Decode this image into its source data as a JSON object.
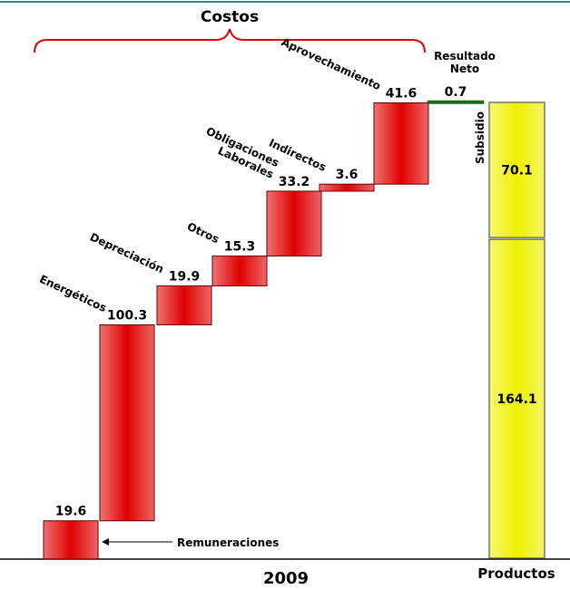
{
  "chart_data": {
    "type": "waterfall",
    "group_label": "Costos",
    "x_label": "2009",
    "categories": [
      "Remuneraciones",
      "Energéticos",
      "Depreciación",
      "Otros",
      "Obligaciones Laborales",
      "Indirectos",
      "Aprovechamiento",
      "Resultado Neto"
    ],
    "values": [
      19.6,
      100.3,
      19.9,
      15.3,
      33.2,
      3.6,
      41.6,
      0.7
    ],
    "colors": [
      "#e00000",
      "#e00000",
      "#e00000",
      "#e00000",
      "#e00000",
      "#e00000",
      "#e00000",
      "#1a6a1a"
    ],
    "stack_label": "Productos",
    "stack_categories": [
      null,
      "Subsidio"
    ],
    "stack_values": [
      164.1,
      70.1
    ],
    "stack_color": "#f0f000"
  }
}
